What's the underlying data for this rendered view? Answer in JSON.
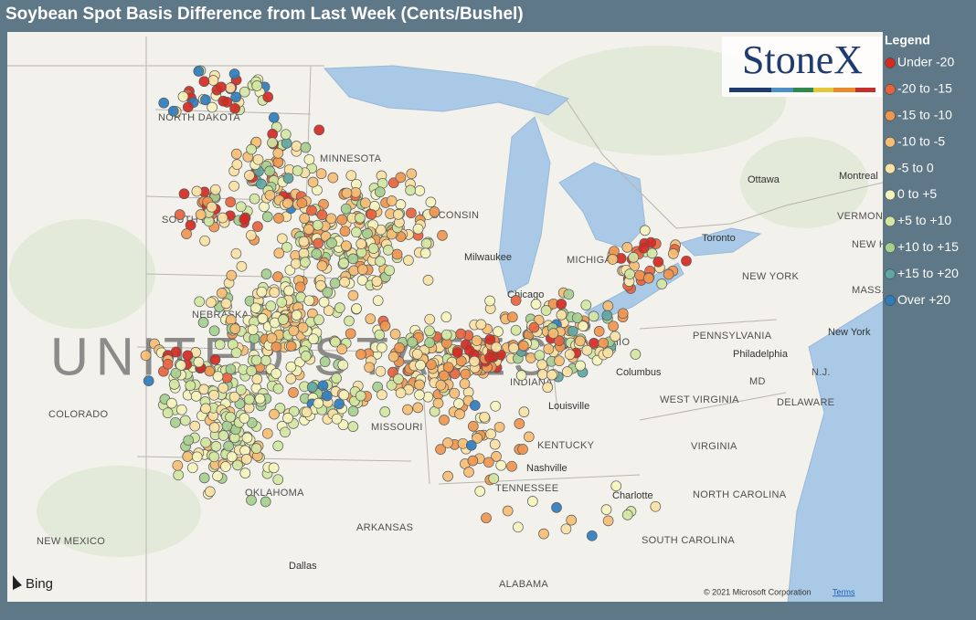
{
  "header": {
    "title": "Soybean Spot Basis Difference from Last Week (Cents/Bushel)"
  },
  "legend": {
    "title": "Legend",
    "items": [
      {
        "label": "Under -20",
        "color": "#d42a22"
      },
      {
        "label": "-20 to -15",
        "color": "#e8643e"
      },
      {
        "label": "-15 to -10",
        "color": "#f0964f"
      },
      {
        "label": "-10 to -5",
        "color": "#f6be74"
      },
      {
        "label": "-5 to 0",
        "color": "#fbe2a4"
      },
      {
        "label": "0 to +5",
        "color": "#f6f4bc"
      },
      {
        "label": "+5 to +10",
        "color": "#d4e7a2"
      },
      {
        "label": "+10 to +15",
        "color": "#a6cf90"
      },
      {
        "label": "+15 to +20",
        "color": "#5fa8a2"
      },
      {
        "label": "Over +20",
        "color": "#2f7dbd"
      }
    ]
  },
  "map": {
    "logo": "StoneX",
    "watermark": "UNITED STATES",
    "labels": [
      "NORTH DAKOTA",
      "MINNESOTA",
      "SOUTH DAKOTA",
      "WISCONSIN",
      "NEBRASKA",
      "MICHIGAN",
      "Milwaukee",
      "Chicago",
      "COLORADO",
      "MISSOURI",
      "INDIANA",
      "OHIO",
      "Columbus",
      "PENNSYLVANIA",
      "NEW YORK",
      "Toronto",
      "Ottawa",
      "Montreal",
      "VERMONT",
      "NEW HAMPSHIRE",
      "MASS.",
      "Philadelphia",
      "New York",
      "MD",
      "N.J.",
      "DELAWARE",
      "WEST VIRGINIA",
      "VIRGINIA",
      "KENTUCKY",
      "Louisville",
      "Nashville",
      "TENNESSEE",
      "Charlotte",
      "NORTH CAROLINA",
      "SOUTH CAROLINA",
      "OKLAHOMA",
      "ARKANSAS",
      "Dallas",
      "ALABAMA",
      "NEW MEXICO"
    ],
    "provider": "Bing",
    "copyright": "© 2021 Microsoft Corporation",
    "terms": "Terms"
  }
}
